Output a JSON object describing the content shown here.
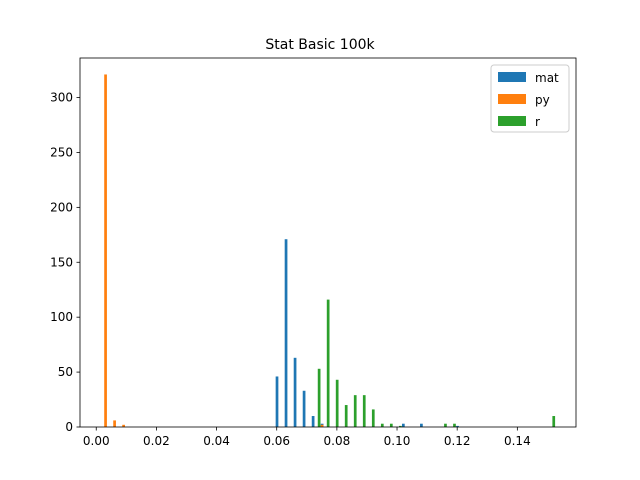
{
  "chart_data": {
    "type": "bar",
    "title": "Stat Basic 100k",
    "xlabel": "",
    "ylabel": "",
    "xlim": [
      -0.0054,
      0.1595
    ],
    "ylim": [
      0,
      336
    ],
    "x_ticks": [
      0.0,
      0.02,
      0.04,
      0.06,
      0.08,
      0.1,
      0.12,
      0.14
    ],
    "x_tick_labels": [
      "0.00",
      "0.02",
      "0.04",
      "0.06",
      "0.08",
      "0.10",
      "0.12",
      "0.14"
    ],
    "y_ticks": [
      0,
      50,
      100,
      150,
      200,
      250,
      300
    ],
    "y_tick_labels": [
      "0",
      "50",
      "100",
      "150",
      "200",
      "250",
      "300"
    ],
    "grid": false,
    "legend_position": "top-right",
    "bar_width": 0.0009,
    "series": [
      {
        "name": "mat",
        "color": "#1f77b4",
        "x": [
          0.0601,
          0.0631,
          0.0661,
          0.0691,
          0.0721,
          0.0751,
          0.1021,
          0.1081,
          0.1201
        ],
        "values": [
          46,
          171,
          63,
          33,
          10,
          3,
          3,
          3,
          1
        ]
      },
      {
        "name": "py",
        "color": "#ff7f0e",
        "x": [
          0.0031,
          0.0061,
          0.0091,
          0.0751
        ],
        "values": [
          321,
          6,
          2,
          2
        ]
      },
      {
        "name": "r",
        "color": "#2ca02c",
        "x": [
          0.0741,
          0.0771,
          0.0801,
          0.0831,
          0.0861,
          0.0891,
          0.0921,
          0.0951,
          0.0981,
          0.1011,
          0.1161,
          0.1191,
          0.1521
        ],
        "values": [
          53,
          116,
          43,
          20,
          29,
          29,
          16,
          3,
          3,
          1,
          3,
          3,
          10
        ]
      }
    ]
  }
}
